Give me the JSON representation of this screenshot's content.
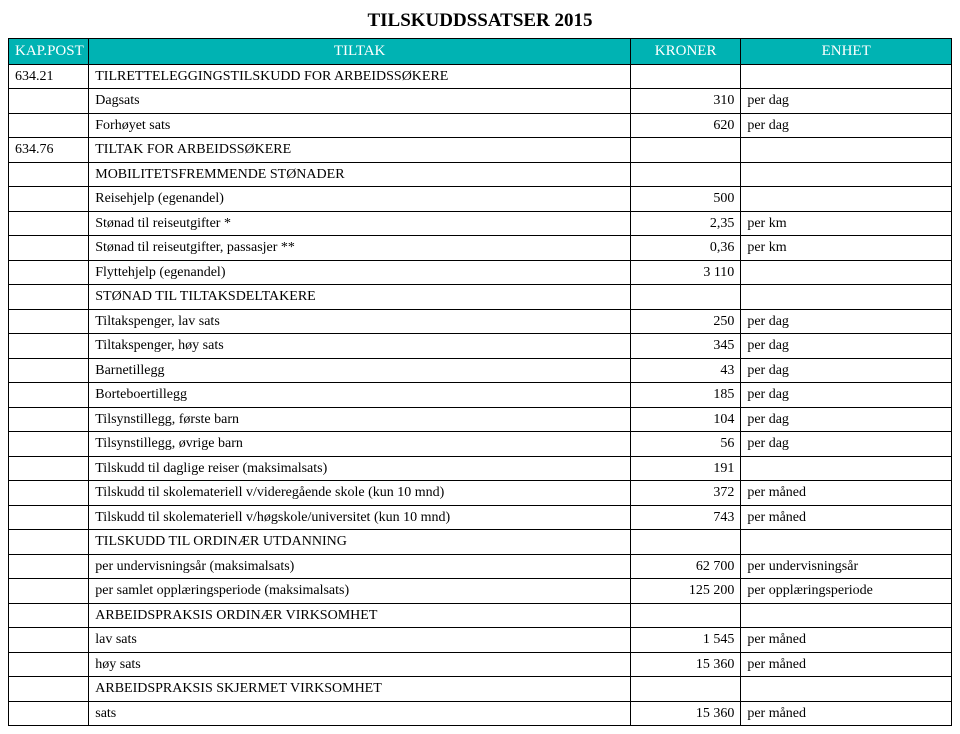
{
  "title": "TILSKUDDSSATSER 2015",
  "headers": {
    "c1": "KAP.POST",
    "c2": "TILTAK",
    "c3": "KRONER",
    "c4": "ENHET"
  },
  "rows": [
    {
      "code": "634.21",
      "desc": "TILRETTELEGGINGSTILSKUDD FOR ARBEIDSSØKERE",
      "amount": "",
      "unit": ""
    },
    {
      "code": "",
      "desc": "Dagsats",
      "amount": "310",
      "unit": "per dag"
    },
    {
      "code": "",
      "desc": "Forhøyet sats",
      "amount": "620",
      "unit": "per dag"
    },
    {
      "code": "634.76",
      "desc": "TILTAK FOR ARBEIDSSØKERE",
      "amount": "",
      "unit": ""
    },
    {
      "code": "",
      "desc": "MOBILITETSFREMMENDE STØNADER",
      "amount": "",
      "unit": ""
    },
    {
      "code": "",
      "desc": "Reisehjelp (egenandel)",
      "amount": "500",
      "unit": ""
    },
    {
      "code": "",
      "desc": "Stønad til reiseutgifter *",
      "amount": "2,35",
      "unit": "per km"
    },
    {
      "code": "",
      "desc": "Stønad til reiseutgifter, passasjer **",
      "amount": "0,36",
      "unit": "per km"
    },
    {
      "code": "",
      "desc": "Flyttehjelp (egenandel)",
      "amount": "3 110",
      "unit": ""
    },
    {
      "code": "",
      "desc": "STØNAD TIL TILTAKSDELTAKERE",
      "amount": "",
      "unit": ""
    },
    {
      "code": "",
      "desc": "Tiltakspenger, lav sats",
      "amount": "250",
      "unit": "per dag"
    },
    {
      "code": "",
      "desc": "Tiltakspenger, høy sats",
      "amount": "345",
      "unit": "per dag"
    },
    {
      "code": "",
      "desc": "Barnetillegg",
      "amount": "43",
      "unit": "per dag"
    },
    {
      "code": "",
      "desc": "Borteboertillegg",
      "amount": "185",
      "unit": "per dag"
    },
    {
      "code": "",
      "desc": "Tilsynstillegg, første barn",
      "amount": "104",
      "unit": "per dag"
    },
    {
      "code": "",
      "desc": "Tilsynstillegg, øvrige barn",
      "amount": "56",
      "unit": "per dag"
    },
    {
      "code": "",
      "desc": "Tilskudd til daglige reiser (maksimalsats)",
      "amount": "191",
      "unit": ""
    },
    {
      "code": "",
      "desc": "Tilskudd til skolemateriell v/videregående skole (kun 10 mnd)",
      "amount": "372",
      "unit": "per måned"
    },
    {
      "code": "",
      "desc": "Tilskudd til skolemateriell v/høgskole/universitet (kun 10 mnd)",
      "amount": "743",
      "unit": "per måned"
    },
    {
      "code": "",
      "desc": "TILSKUDD TIL ORDINÆR UTDANNING",
      "amount": "",
      "unit": ""
    },
    {
      "code": "",
      "desc": "per undervisningsår (maksimalsats)",
      "amount": "62 700",
      "unit": "per undervisningsår"
    },
    {
      "code": "",
      "desc": "per samlet opplæringsperiode (maksimalsats)",
      "amount": "125 200",
      "unit": "per opplæringsperiode"
    },
    {
      "code": "",
      "desc": "ARBEIDSPRAKSIS ORDINÆR VIRKSOMHET",
      "amount": "",
      "unit": ""
    },
    {
      "code": "",
      "desc": "lav sats",
      "amount": "1 545",
      "unit": "per måned"
    },
    {
      "code": "",
      "desc": "høy sats",
      "amount": "15 360",
      "unit": "per måned"
    },
    {
      "code": "",
      "desc": "ARBEIDSPRAKSIS SKJERMET VIRKSOMHET",
      "amount": "",
      "unit": ""
    },
    {
      "code": "",
      "desc": "sats",
      "amount": "15 360",
      "unit": "per måned"
    }
  ]
}
